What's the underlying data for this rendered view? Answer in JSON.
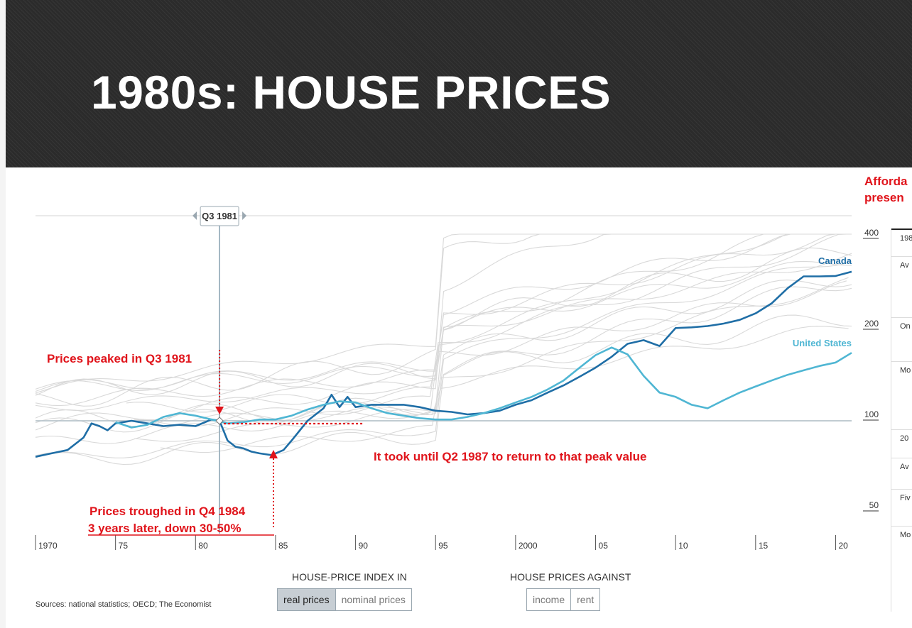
{
  "slide": {
    "title": "1980s: HOUSE PRICES",
    "side_heading": [
      "Afforda",
      "presen"
    ]
  },
  "chart_data": {
    "type": "line",
    "x_axis": {
      "ticks": [
        "1970",
        "75",
        "80",
        "85",
        "90",
        "95",
        "2000",
        "05",
        "10",
        "15",
        "20"
      ],
      "range": [
        1970,
        2021
      ]
    },
    "y_axis": {
      "scale": "log",
      "ticks": [
        "50",
        "100",
        "200",
        "400"
      ],
      "range": [
        44,
        500
      ]
    },
    "selected_period": "Q3 1981",
    "reference_line": 100,
    "series": [
      {
        "name": "Canada",
        "color": "#1f6ea6",
        "points": [
          [
            1970,
            76
          ],
          [
            1971,
            78
          ],
          [
            1972,
            80
          ],
          [
            1973,
            88
          ],
          [
            1973.5,
            98
          ],
          [
            1974,
            96
          ],
          [
            1974.5,
            93
          ],
          [
            1975,
            98
          ],
          [
            1976,
            100
          ],
          [
            1977,
            98
          ],
          [
            1978,
            96
          ],
          [
            1979,
            97
          ],
          [
            1980,
            96
          ],
          [
            1981,
            101
          ],
          [
            1981.5,
            100
          ],
          [
            1982,
            86
          ],
          [
            1982.5,
            82
          ],
          [
            1983,
            81
          ],
          [
            1983.5,
            79
          ],
          [
            1984,
            78
          ],
          [
            1984.75,
            77
          ],
          [
            1985.5,
            80
          ],
          [
            1986,
            86
          ],
          [
            1987,
            100
          ],
          [
            1988,
            110
          ],
          [
            1988.5,
            122
          ],
          [
            1989,
            111
          ],
          [
            1989.5,
            120
          ],
          [
            1990,
            111
          ],
          [
            1991,
            113
          ],
          [
            1992,
            113
          ],
          [
            1993,
            113
          ],
          [
            1994,
            111
          ],
          [
            1995,
            108
          ],
          [
            1996,
            107
          ],
          [
            1997,
            105
          ],
          [
            1998,
            106
          ],
          [
            1999,
            108
          ],
          [
            2000,
            113
          ],
          [
            2001,
            117
          ],
          [
            2002,
            124
          ],
          [
            2003,
            131
          ],
          [
            2004,
            140
          ],
          [
            2005,
            150
          ],
          [
            2006,
            163
          ],
          [
            2007,
            180
          ],
          [
            2008,
            185
          ],
          [
            2009,
            177
          ],
          [
            2010,
            203
          ],
          [
            2011,
            204
          ],
          [
            2012,
            206
          ],
          [
            2013,
            210
          ],
          [
            2014,
            216
          ],
          [
            2015,
            227
          ],
          [
            2016,
            245
          ],
          [
            2017,
            275
          ],
          [
            2018,
            301
          ],
          [
            2019,
            301
          ],
          [
            2020,
            302
          ],
          [
            2021,
            312
          ]
        ]
      },
      {
        "name": "United States",
        "color": "#4fb6d3",
        "points": [
          [
            1975,
            99
          ],
          [
            1976,
            95
          ],
          [
            1977,
            97
          ],
          [
            1978,
            103
          ],
          [
            1979,
            106
          ],
          [
            1980,
            104
          ],
          [
            1981,
            101
          ],
          [
            1982,
            98
          ],
          [
            1983,
            99
          ],
          [
            1984,
            101
          ],
          [
            1985,
            101
          ],
          [
            1986,
            104
          ],
          [
            1987,
            109
          ],
          [
            1988,
            113
          ],
          [
            1989,
            116
          ],
          [
            1990,
            115
          ],
          [
            1991,
            110
          ],
          [
            1992,
            106
          ],
          [
            1993,
            104
          ],
          [
            1994,
            102
          ],
          [
            1995,
            101
          ],
          [
            1996,
            101
          ],
          [
            1997,
            103
          ],
          [
            1998,
            106
          ],
          [
            1999,
            110
          ],
          [
            2000,
            115
          ],
          [
            2001,
            120
          ],
          [
            2002,
            127
          ],
          [
            2003,
            136
          ],
          [
            2004,
            150
          ],
          [
            2005,
            165
          ],
          [
            2006,
            175
          ],
          [
            2007,
            166
          ],
          [
            2008,
            141
          ],
          [
            2009,
            124
          ],
          [
            2010,
            120
          ],
          [
            2011,
            113
          ],
          [
            2012,
            110
          ],
          [
            2013,
            117
          ],
          [
            2014,
            124
          ],
          [
            2015,
            130
          ],
          [
            2016,
            136
          ],
          [
            2017,
            142
          ],
          [
            2018,
            147
          ],
          [
            2019,
            152
          ],
          [
            2020,
            156
          ],
          [
            2021,
            168
          ]
        ]
      }
    ],
    "annotations": {
      "peak": "Prices peaked in Q3 1981",
      "trough_line1": "Prices troughed in Q4 1984",
      "trough_line2": "3 years later, down 30-50%",
      "return": "It took until Q2 1987 to return to that peak value"
    },
    "annotation_color": "#e0141b"
  },
  "controls": {
    "index_label": "HOUSE-PRICE INDEX IN",
    "index_options": [
      "real prices",
      "nominal prices"
    ],
    "index_selected": "real prices",
    "against_label": "HOUSE PRICES AGAINST",
    "against_options": [
      "income",
      "rent"
    ]
  },
  "sources": "Sources: national statistics; OECD; The Economist",
  "side_table": {
    "rows": [
      "198",
      "Av",
      "On",
      "Mo",
      "20",
      "Av",
      "Fiv",
      "Mo"
    ]
  }
}
